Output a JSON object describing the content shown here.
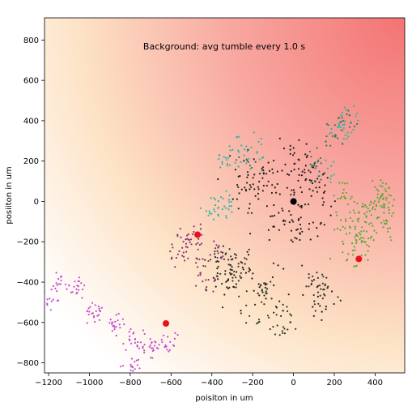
{
  "chart_data": {
    "type": "scatter",
    "title": "",
    "annotation": "Background: avg tumble every 1.0 s",
    "xlabel": "poisiton in um",
    "ylabel": "posiiton in um",
    "xlim": [
      -1220,
      545
    ],
    "ylim": [
      -850,
      910
    ],
    "xticks": [
      -1200,
      -1000,
      -800,
      -600,
      -400,
      -200,
      0,
      200,
      400
    ],
    "yticks": [
      -800,
      -600,
      -400,
      -200,
      0,
      200,
      400,
      600,
      800
    ],
    "grid": false,
    "background": {
      "type": "gradient",
      "peak": [
        545,
        910
      ],
      "colors": [
        "#ffffff",
        "#fde3c6",
        "#f8a7a0",
        "#f37373"
      ]
    },
    "series": [
      {
        "color": "#1f1f1f",
        "seed": 11,
        "centers": [
          [
            -20,
            40
          ],
          [
            -180,
            120
          ],
          [
            -100,
            190
          ],
          [
            60,
            180
          ],
          [
            120,
            60
          ],
          [
            -60,
            -60
          ],
          [
            -250,
            -320
          ],
          [
            -350,
            -400
          ],
          [
            120,
            -500
          ],
          [
            -130,
            -430
          ],
          [
            50,
            -120
          ],
          [
            -210,
            60
          ]
        ],
        "count": 260,
        "spread": 95
      },
      {
        "color": "#2a3a2a",
        "seed": 17,
        "centers": [
          [
            -280,
            -300
          ],
          [
            -300,
            -380
          ],
          [
            -150,
            -450
          ],
          [
            -170,
            -560
          ],
          [
            -60,
            -600
          ],
          [
            110,
            -380
          ],
          [
            140,
            -470
          ],
          [
            -360,
            -280
          ]
        ],
        "count": 140,
        "spread": 55
      },
      {
        "color": "#2bb7a2",
        "seed": 23,
        "centers": [
          [
            -330,
            200
          ],
          [
            -180,
            220
          ],
          [
            -250,
            280
          ],
          [
            -330,
            0
          ],
          [
            -380,
            -60
          ],
          [
            230,
            350
          ],
          [
            270,
            410
          ],
          [
            170,
            130
          ]
        ],
        "count": 120,
        "spread": 50
      },
      {
        "color": "#2f7a60",
        "seed": 29,
        "centers": [
          [
            180,
            320
          ],
          [
            240,
            400
          ],
          [
            100,
            200
          ],
          [
            130,
            120
          ],
          [
            -230,
            190
          ]
        ],
        "count": 60,
        "spread": 45
      },
      {
        "color": "#5aa838",
        "seed": 31,
        "centers": [
          [
            250,
            -120
          ],
          [
            330,
            -60
          ],
          [
            420,
            -20
          ],
          [
            460,
            -120
          ],
          [
            350,
            -180
          ],
          [
            290,
            -260
          ],
          [
            240,
            20
          ],
          [
            440,
            40
          ]
        ],
        "count": 180,
        "spread": 55
      },
      {
        "color": "#8b2f7a",
        "seed": 37,
        "centers": [
          [
            -540,
            -180
          ],
          [
            -470,
            -180
          ],
          [
            -380,
            -230
          ],
          [
            -460,
            -300
          ],
          [
            -560,
            -260
          ],
          [
            -440,
            -400
          ]
        ],
        "count": 80,
        "spread": 45
      },
      {
        "color": "#c54bd0",
        "seed": 41,
        "centers": [
          [
            -1150,
            -400
          ],
          [
            -1050,
            -450
          ],
          [
            -980,
            -560
          ],
          [
            -880,
            -600
          ],
          [
            -780,
            -680
          ],
          [
            -700,
            -730
          ],
          [
            -620,
            -700
          ],
          [
            -800,
            -820
          ],
          [
            -1200,
            -500
          ]
        ],
        "count": 170,
        "spread": 50
      }
    ],
    "markers": [
      {
        "x": -470,
        "y": -165,
        "color": "#e8131a"
      },
      {
        "x": -625,
        "y": -605,
        "color": "#e8131a"
      },
      {
        "x": 320,
        "y": -285,
        "color": "#e8131a"
      },
      {
        "x": 0,
        "y": 0,
        "color": "#000000"
      }
    ]
  }
}
